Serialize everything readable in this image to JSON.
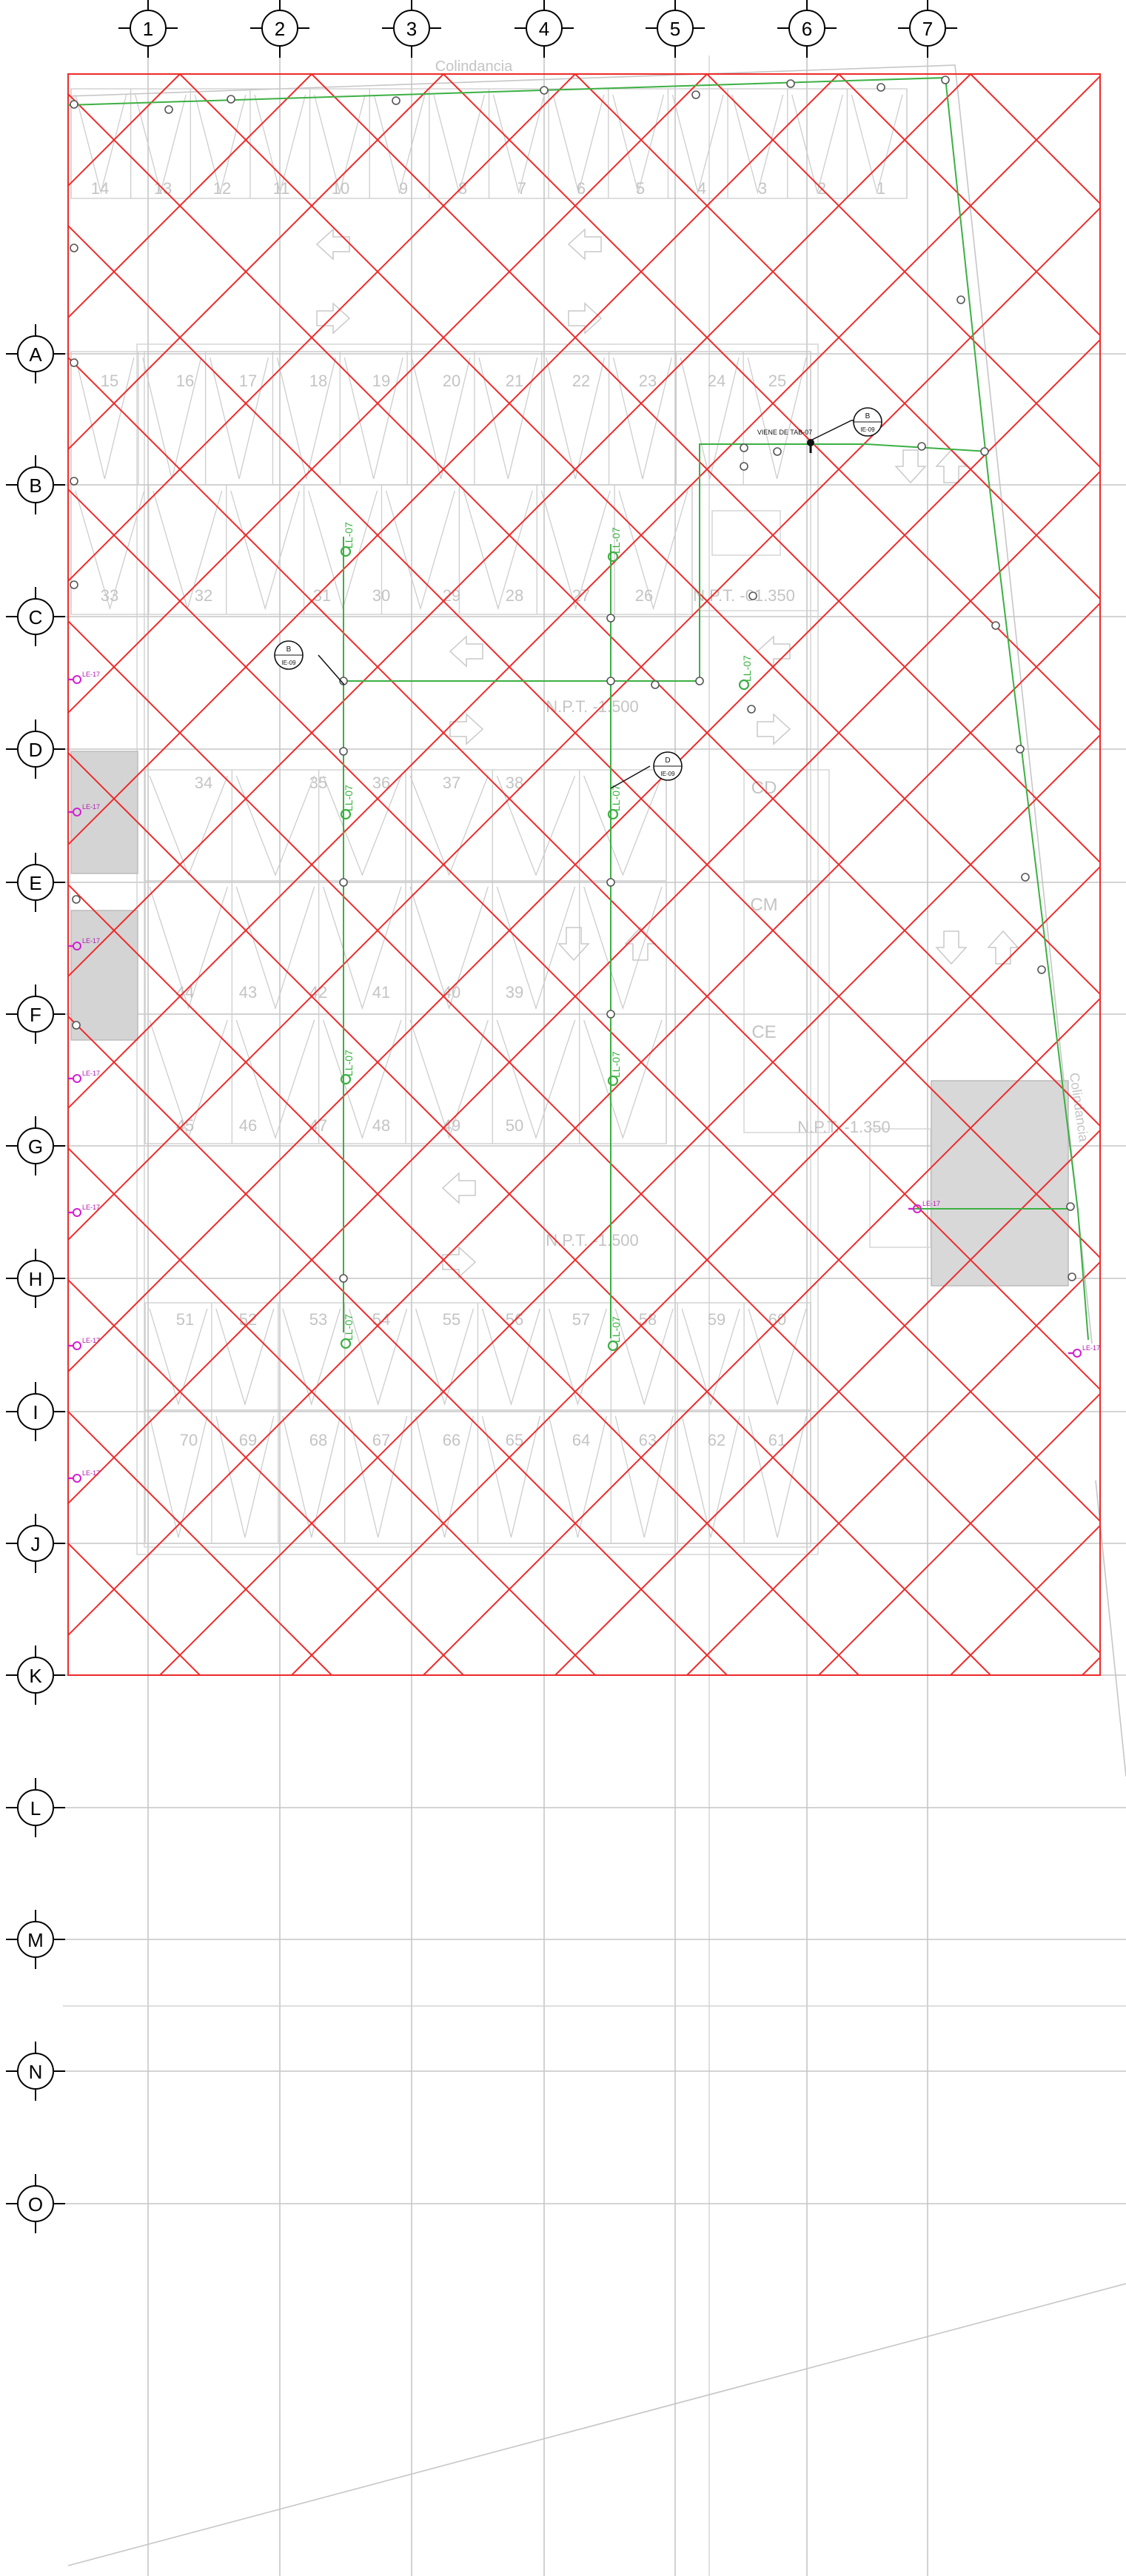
{
  "column_axes": [
    "1",
    "2",
    "3",
    "4",
    "5",
    "6",
    "7"
  ],
  "row_axes": [
    "A",
    "B",
    "C",
    "D",
    "E",
    "F",
    "G",
    "H",
    "I",
    "J",
    "K",
    "L",
    "M",
    "N",
    "O"
  ],
  "labels": {
    "colindancia": "Colindancia",
    "npt_lower": "N.P.T. -01.350",
    "npt_center": "N.P.T. -1.500",
    "npt_right": "N.P.T. -1.350",
    "npt_bottom": "N.P.T. -1.500",
    "cm": "CM",
    "ce": "CE",
    "cuarto": "CD",
    "viene_de": "VIENE DE TAB-07",
    "detail_1": "B / IE-09",
    "detail_2": "B / IE-09",
    "detail_3": "D / IE-09",
    "vertical_side": "Colindancia"
  },
  "parking": {
    "row1": [
      "14",
      "13",
      "12",
      "11",
      "10",
      "9",
      "8",
      "7",
      "6",
      "5",
      "4",
      "3",
      "2",
      "1"
    ],
    "row2": [
      "15",
      "16",
      "17",
      "18",
      "19",
      "20",
      "21",
      "22",
      "23",
      "24",
      "25"
    ],
    "row3": [
      "33",
      "32",
      "31",
      "30",
      "29",
      "28",
      "27",
      "26"
    ],
    "row4": [
      "34",
      "35",
      "36",
      "37",
      "38"
    ],
    "row5": [
      "44",
      "43",
      "42",
      "41",
      "40",
      "39"
    ],
    "row6": [
      "45",
      "46",
      "47",
      "48",
      "49",
      "50"
    ],
    "row7": [
      "51",
      "52",
      "53",
      "54",
      "55",
      "56",
      "57",
      "58",
      "59",
      "60"
    ],
    "row8": [
      "70",
      "69",
      "68",
      "67",
      "66",
      "65",
      "64",
      "63",
      "62",
      "61"
    ]
  },
  "green_tags": [
    "LL-07",
    "LL-07",
    "LL-07",
    "LL-07",
    "LL-07",
    "LL-07",
    "LL-07",
    "LL-07",
    "LL-07"
  ],
  "magenta_tags": [
    "LE-17",
    "LE-17",
    "LE-17",
    "LE-17",
    "LE-17",
    "LE-17",
    "LE-17",
    "LE-17",
    "LE-17",
    "LE-17"
  ],
  "colors": {
    "grid": "#c6c6c6",
    "red_mesh": "#ee2a2a",
    "green_circuit": "#3cb043",
    "magenta_circuit": "#d21fd2",
    "bubble": "#000000"
  }
}
